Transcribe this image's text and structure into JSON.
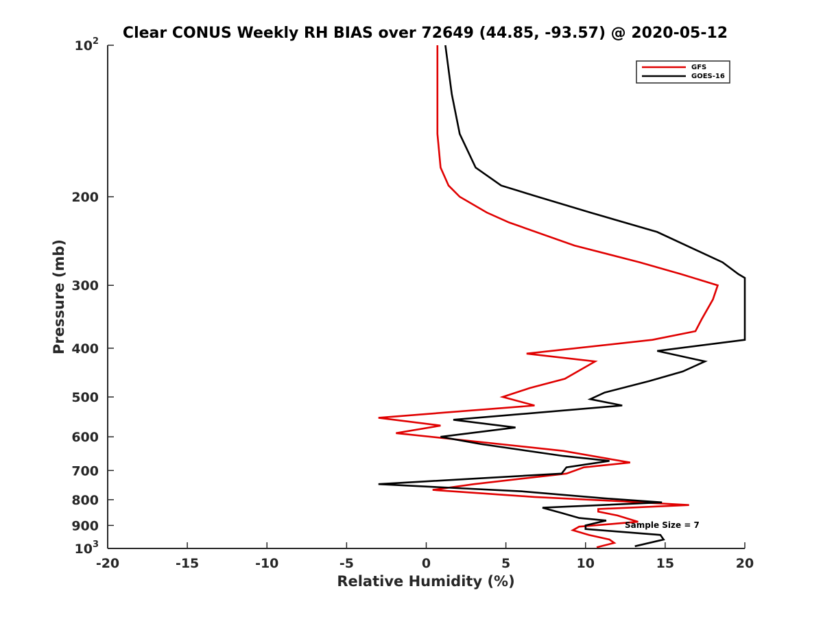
{
  "chart_data": {
    "type": "line",
    "title": "Clear CONUS Weekly RH BIAS over 72649 (44.85, -93.57) @ 2020-05-12",
    "xlabel": "Relative Humidity (%)",
    "ylabel": "Pressure (mb)",
    "xlim": [
      -20,
      20
    ],
    "ylim": [
      100,
      1000
    ],
    "y_scale": "log",
    "y_reversed": true,
    "x_ticks": [
      -20,
      -15,
      -10,
      -5,
      0,
      5,
      10,
      15,
      20
    ],
    "x_tick_labels": [
      "-20",
      "-15",
      "-10",
      "-5",
      "0",
      "5",
      "10",
      "15",
      "20"
    ],
    "y_ticks": [
      100,
      200,
      300,
      400,
      500,
      600,
      700,
      800,
      900,
      1000
    ],
    "y_tick_labels": [
      {
        "base": "10",
        "exp": "2"
      },
      {
        "base": "200",
        "exp": ""
      },
      {
        "base": "300",
        "exp": ""
      },
      {
        "base": "400",
        "exp": ""
      },
      {
        "base": "500",
        "exp": ""
      },
      {
        "base": "600",
        "exp": ""
      },
      {
        "base": "700",
        "exp": ""
      },
      {
        "base": "800",
        "exp": ""
      },
      {
        "base": "900",
        "exp": ""
      },
      {
        "base": "10",
        "exp": "3"
      }
    ],
    "grid": false,
    "legend_position": "top-right",
    "annotation": "Sample Size = 7",
    "series": [
      {
        "name": "GFS",
        "color": "#e00000",
        "points": [
          [
            0.7,
            100
          ],
          [
            0.7,
            125
          ],
          [
            0.7,
            150
          ],
          [
            0.9,
            175
          ],
          [
            1.4,
            190
          ],
          [
            2.1,
            200
          ],
          [
            3.8,
            215
          ],
          [
            5.2,
            225
          ],
          [
            9.3,
            250
          ],
          [
            13.4,
            270
          ],
          [
            16.0,
            285
          ],
          [
            18.3,
            300
          ],
          [
            18.0,
            320
          ],
          [
            17.3,
            350
          ],
          [
            16.9,
            370
          ],
          [
            14.2,
            385
          ],
          [
            6.3,
            410
          ],
          [
            10.6,
            425
          ],
          [
            8.7,
            460
          ],
          [
            6.5,
            480
          ],
          [
            4.8,
            500
          ],
          [
            6.8,
            520
          ],
          [
            -3.0,
            550
          ],
          [
            0.9,
            570
          ],
          [
            -1.9,
            590
          ],
          [
            3.5,
            615
          ],
          [
            8.6,
            640
          ],
          [
            12.8,
            675
          ],
          [
            9.9,
            690
          ],
          [
            8.8,
            710
          ],
          [
            3.0,
            745
          ],
          [
            0.4,
            765
          ],
          [
            6.8,
            790
          ],
          [
            12.0,
            805
          ],
          [
            16.5,
            820
          ],
          [
            10.8,
            835
          ],
          [
            10.8,
            845
          ],
          [
            12.0,
            860
          ],
          [
            13.3,
            885
          ],
          [
            9.6,
            905
          ],
          [
            9.2,
            920
          ],
          [
            10.2,
            940
          ],
          [
            11.5,
            960
          ],
          [
            11.8,
            975
          ],
          [
            10.7,
            995
          ]
        ]
      },
      {
        "name": "GOES-16",
        "color": "#000000",
        "points": [
          [
            1.2,
            100
          ],
          [
            1.6,
            125
          ],
          [
            2.1,
            150
          ],
          [
            3.1,
            175
          ],
          [
            4.7,
            190
          ],
          [
            7.0,
            200
          ],
          [
            10.3,
            215
          ],
          [
            14.5,
            235
          ],
          [
            18.6,
            270
          ],
          [
            19.6,
            285
          ],
          [
            20.0,
            290
          ],
          [
            20.0,
            385
          ],
          [
            14.5,
            405
          ],
          [
            17.5,
            425
          ],
          [
            16.1,
            445
          ],
          [
            14.0,
            465
          ],
          [
            11.2,
            490
          ],
          [
            10.3,
            505
          ],
          [
            12.3,
            520
          ],
          [
            1.7,
            555
          ],
          [
            5.6,
            575
          ],
          [
            0.9,
            600
          ],
          [
            3.4,
            620
          ],
          [
            8.6,
            655
          ],
          [
            11.5,
            670
          ],
          [
            8.8,
            690
          ],
          [
            8.5,
            710
          ],
          [
            -3.0,
            745
          ],
          [
            6.0,
            770
          ],
          [
            11.2,
            795
          ],
          [
            14.8,
            810
          ],
          [
            7.3,
            830
          ],
          [
            8.5,
            850
          ],
          [
            9.6,
            870
          ],
          [
            11.3,
            880
          ],
          [
            10.0,
            900
          ],
          [
            10.0,
            915
          ],
          [
            14.7,
            940
          ],
          [
            14.9,
            960
          ],
          [
            13.1,
            990
          ]
        ]
      }
    ]
  }
}
